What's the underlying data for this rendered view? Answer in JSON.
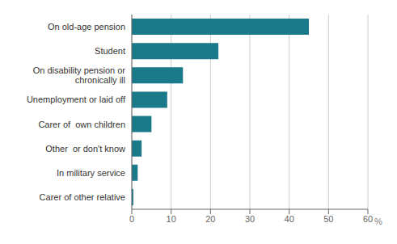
{
  "chart_data": {
    "type": "bar",
    "orientation": "horizontal",
    "categories": [
      "Carer of other relative",
      "In military service",
      "Other  or don't know",
      "Carer of  own children",
      "Unemployment or laid off",
      "On disability pension or\nchronically ill",
      "Student",
      "On old-age pension"
    ],
    "values": [
      0.4,
      1.5,
      2.5,
      5.0,
      9.0,
      13.0,
      22.0,
      45.0
    ],
    "color": "#1a7a8a",
    "xlim": [
      0,
      60
    ],
    "xticks": [
      0,
      10,
      20,
      30,
      40,
      50,
      60
    ],
    "xlabel": "%",
    "grid": true
  }
}
